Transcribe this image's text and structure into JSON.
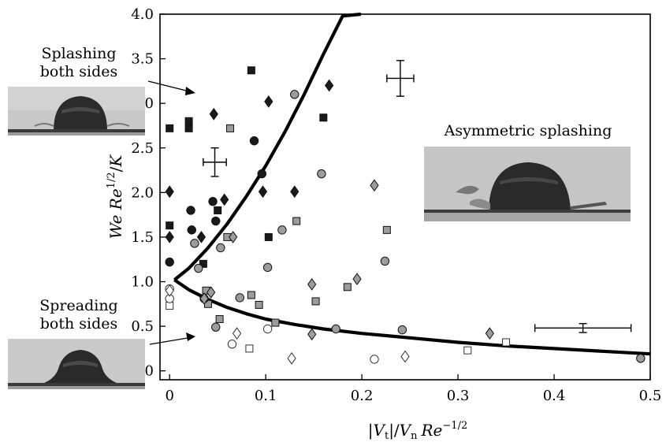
{
  "annotations": {
    "splashing_both": [
      "Splashing",
      "both sides"
    ],
    "asymmetric": "Asymmetric splashing",
    "spreading_both": [
      "Spreading",
      "both sides"
    ]
  },
  "chart_data": {
    "type": "scatter",
    "title": "",
    "xlabel": "|Vt|/Vn Re^-1/2",
    "ylabel": "We Re^1/2/K",
    "xlim": [
      -0.01,
      0.5
    ],
    "ylim": [
      -0.1,
      4.0
    ],
    "xticks": [
      "0",
      "0.1",
      "0.2",
      "0.3",
      "0.4",
      "0.5"
    ],
    "yticks": [
      "0",
      "0.5",
      "1.0",
      "1.5",
      "2.0",
      "2.5",
      "3.0",
      "3.5",
      "4.0"
    ],
    "grid": false,
    "colors": {
      "black": "#1a1a1a",
      "gray": "#9c9c9c",
      "white": "#ffffff",
      "curve": "#000000"
    },
    "series": [
      {
        "marker": "square",
        "fill": "black",
        "points": [
          [
            0,
            2.72
          ],
          [
            0,
            1.63
          ],
          [
            0.02,
            2.8
          ],
          [
            0.02,
            2.72
          ],
          [
            0.035,
            1.2
          ],
          [
            0.05,
            1.8
          ],
          [
            0.085,
            3.37
          ],
          [
            0.103,
            1.5
          ],
          [
            0.16,
            2.84
          ]
        ]
      },
      {
        "marker": "circle",
        "fill": "black",
        "points": [
          [
            0,
            1.22
          ],
          [
            0.022,
            1.8
          ],
          [
            0.023,
            1.58
          ],
          [
            0.045,
            1.9
          ],
          [
            0.048,
            1.68
          ],
          [
            0.088,
            2.58
          ],
          [
            0.096,
            2.21
          ]
        ]
      },
      {
        "marker": "diamond",
        "fill": "black",
        "points": [
          [
            0,
            2.01
          ],
          [
            0,
            1.5
          ],
          [
            0.033,
            1.5
          ],
          [
            0.046,
            2.88
          ],
          [
            0.057,
            1.92
          ],
          [
            0.097,
            2.01
          ],
          [
            0.103,
            3.02
          ],
          [
            0.13,
            2.01
          ],
          [
            0.166,
            3.2
          ]
        ]
      },
      {
        "marker": "square",
        "fill": "gray",
        "points": [
          [
            0.038,
            0.9
          ],
          [
            0.04,
            0.75
          ],
          [
            0.052,
            0.58
          ],
          [
            0.06,
            1.5
          ],
          [
            0.063,
            2.72
          ],
          [
            0.085,
            0.85
          ],
          [
            0.093,
            0.74
          ],
          [
            0.11,
            0.54
          ],
          [
            0.132,
            1.68
          ],
          [
            0.152,
            0.78
          ],
          [
            0.185,
            0.94
          ],
          [
            0.226,
            1.58
          ]
        ]
      },
      {
        "marker": "circle",
        "fill": "gray",
        "points": [
          [
            0.026,
            1.43
          ],
          [
            0.03,
            1.15
          ],
          [
            0.036,
            0.81
          ],
          [
            0.048,
            0.49
          ],
          [
            0.053,
            1.38
          ],
          [
            0.073,
            0.82
          ],
          [
            0.102,
            1.16
          ],
          [
            0.117,
            1.58
          ],
          [
            0.13,
            3.1
          ],
          [
            0.158,
            2.21
          ],
          [
            0.173,
            0.47
          ],
          [
            0.224,
            1.23
          ],
          [
            0.242,
            0.46
          ],
          [
            0.49,
            0.14
          ]
        ]
      },
      {
        "marker": "diamond",
        "fill": "gray",
        "points": [
          [
            0.036,
            0.81
          ],
          [
            0.043,
            0.88
          ],
          [
            0.066,
            1.5
          ],
          [
            0.148,
            0.41
          ],
          [
            0.148,
            0.97
          ],
          [
            0.195,
            1.03
          ],
          [
            0.213,
            2.08
          ],
          [
            0.333,
            0.42
          ]
        ]
      },
      {
        "marker": "square",
        "fill": "white",
        "points": [
          [
            0,
            0.73
          ],
          [
            0.083,
            0.25
          ],
          [
            0.31,
            0.23
          ],
          [
            0.35,
            0.32
          ]
        ]
      },
      {
        "marker": "circle",
        "fill": "white",
        "points": [
          [
            0,
            0.81
          ],
          [
            0,
            0.92
          ],
          [
            0.065,
            0.3
          ],
          [
            0.102,
            0.47
          ],
          [
            0.213,
            0.13
          ]
        ]
      },
      {
        "marker": "diamond",
        "fill": "white",
        "points": [
          [
            0,
            0.9
          ],
          [
            0.07,
            0.42
          ],
          [
            0.127,
            0.14
          ],
          [
            0.245,
            0.16
          ]
        ]
      }
    ],
    "curves": [
      {
        "name": "upper-boundary",
        "points": [
          [
            0.005,
            1.02
          ],
          [
            0.02,
            1.15
          ],
          [
            0.04,
            1.38
          ],
          [
            0.06,
            1.65
          ],
          [
            0.08,
            1.96
          ],
          [
            0.1,
            2.3
          ],
          [
            0.12,
            2.68
          ],
          [
            0.14,
            3.1
          ],
          [
            0.16,
            3.55
          ],
          [
            0.18,
            3.98
          ],
          [
            0.199,
            4.0
          ]
        ]
      },
      {
        "name": "lower-boundary",
        "points": [
          [
            0.005,
            1.02
          ],
          [
            0.02,
            0.91
          ],
          [
            0.04,
            0.8
          ],
          [
            0.06,
            0.71
          ],
          [
            0.08,
            0.64
          ],
          [
            0.1,
            0.58
          ],
          [
            0.13,
            0.52
          ],
          [
            0.16,
            0.47
          ],
          [
            0.2,
            0.42
          ],
          [
            0.25,
            0.37
          ],
          [
            0.3,
            0.32
          ],
          [
            0.35,
            0.28
          ],
          [
            0.4,
            0.25
          ],
          [
            0.45,
            0.22
          ],
          [
            0.5,
            0.19
          ]
        ]
      }
    ],
    "error_bars": [
      {
        "x": 0.24,
        "y": 3.28,
        "xerr": 0.014,
        "yerr": 0.2
      },
      {
        "x": 0.047,
        "y": 2.34,
        "xerr": 0.012,
        "yerr": 0.16
      },
      {
        "x": 0.43,
        "y": 0.48,
        "xerr": 0.05,
        "yerr": 0.05
      }
    ]
  }
}
